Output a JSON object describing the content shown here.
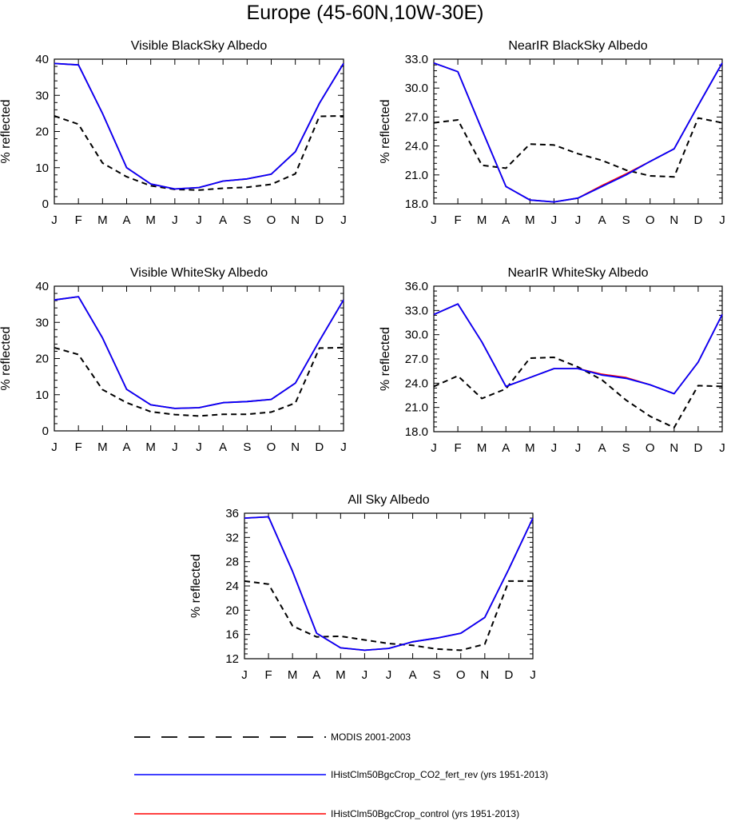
{
  "figure": {
    "title": "Europe (45-60N,10W-30E)"
  },
  "colors": {
    "modis": "#000000",
    "co2_fert_rev": "#0000ff",
    "control": "#ff0000"
  },
  "legend": [
    {
      "label": "MODIS 2001-2003",
      "color": "#000000",
      "dash": true
    },
    {
      "label": "IHistClm50BgcCrop_CO2_fert_rev (yrs 1951-2013)",
      "color": "#0000ff",
      "dash": false
    },
    {
      "label": "IHistClm50BgcCrop_control (yrs 1951-2013)",
      "color": "#ff0000",
      "dash": false
    }
  ],
  "chart_data": [
    {
      "type": "line",
      "title": "Visible BlackSky Albedo",
      "ylabel": "% reflected",
      "xlabel": "",
      "categories": [
        "J",
        "F",
        "M",
        "A",
        "M",
        "J",
        "J",
        "A",
        "S",
        "O",
        "N",
        "D",
        "J"
      ],
      "ylim": [
        0,
        40
      ],
      "yticks": [
        "0",
        "10",
        "20",
        "30",
        "40"
      ],
      "series": [
        {
          "name": "MODIS 2001-2003",
          "values": [
            24.3,
            22.0,
            11.3,
            7.5,
            5.0,
            4.0,
            3.8,
            4.3,
            4.6,
            5.4,
            8.3,
            24.2,
            24.3
          ]
        },
        {
          "name": "IHistClm50BgcCrop_control (yrs 1951-2013)",
          "values": [
            38.8,
            38.4,
            25.0,
            10.0,
            5.5,
            4.1,
            4.5,
            6.3,
            6.9,
            8.2,
            14.4,
            27.8,
            38.8
          ]
        },
        {
          "name": "IHistClm50BgcCrop_CO2_fert_rev (yrs 1951-2013)",
          "values": [
            38.8,
            38.4,
            25.0,
            10.0,
            5.5,
            4.1,
            4.5,
            6.3,
            6.9,
            8.2,
            14.4,
            27.8,
            38.8
          ]
        }
      ]
    },
    {
      "type": "line",
      "title": "NearIR BlackSky Albedo",
      "ylabel": "% reflected",
      "xlabel": "",
      "categories": [
        "J",
        "F",
        "M",
        "A",
        "M",
        "J",
        "J",
        "A",
        "S",
        "O",
        "N",
        "D",
        "J"
      ],
      "ylim": [
        18.0,
        33.0
      ],
      "yticks": [
        "18.0",
        "21.0",
        "24.0",
        "27.0",
        "30.0",
        "33.0"
      ],
      "series": [
        {
          "name": "MODIS 2001-2003",
          "values": [
            26.4,
            26.7,
            22.0,
            21.7,
            24.2,
            24.1,
            23.2,
            22.5,
            21.5,
            20.9,
            20.8,
            26.9,
            26.4
          ]
        },
        {
          "name": "IHistClm50BgcCrop_control (yrs 1951-2013)",
          "values": [
            32.6,
            31.7,
            25.7,
            19.8,
            18.4,
            18.2,
            18.6,
            19.9,
            21.1,
            22.4,
            23.7,
            28.2,
            32.6
          ]
        },
        {
          "name": "IHistClm50BgcCrop_CO2_fert_rev (yrs 1951-2013)",
          "values": [
            32.6,
            31.7,
            25.7,
            19.8,
            18.4,
            18.2,
            18.6,
            19.8,
            21.0,
            22.4,
            23.7,
            28.2,
            32.6
          ]
        }
      ]
    },
    {
      "type": "line",
      "title": "Visible WhiteSky Albedo",
      "ylabel": "% reflected",
      "xlabel": "",
      "categories": [
        "J",
        "F",
        "M",
        "A",
        "M",
        "J",
        "J",
        "A",
        "S",
        "O",
        "N",
        "D",
        "J"
      ],
      "ylim": [
        0,
        40
      ],
      "yticks": [
        "0",
        "10",
        "20",
        "30",
        "40"
      ],
      "series": [
        {
          "name": "MODIS 2001-2003",
          "values": [
            23.0,
            21.1,
            11.4,
            7.8,
            5.3,
            4.5,
            4.1,
            4.6,
            4.6,
            5.2,
            7.7,
            22.9,
            23.0
          ]
        },
        {
          "name": "IHistClm50BgcCrop_control (yrs 1951-2013)",
          "values": [
            36.2,
            37.1,
            25.7,
            11.5,
            7.2,
            6.2,
            6.4,
            7.8,
            8.1,
            8.7,
            13.2,
            24.9,
            36.2
          ]
        },
        {
          "name": "IHistClm50BgcCrop_CO2_fert_rev (yrs 1951-2013)",
          "values": [
            36.2,
            37.1,
            25.7,
            11.5,
            7.2,
            6.2,
            6.4,
            7.8,
            8.1,
            8.7,
            13.2,
            24.9,
            36.2
          ]
        }
      ]
    },
    {
      "type": "line",
      "title": "NearIR WhiteSky Albedo",
      "ylabel": "% reflected",
      "xlabel": "",
      "categories": [
        "J",
        "F",
        "M",
        "A",
        "M",
        "J",
        "J",
        "A",
        "S",
        "O",
        "N",
        "D",
        "J"
      ],
      "ylim": [
        18.0,
        36.0
      ],
      "yticks": [
        "18.0",
        "21.0",
        "24.0",
        "27.0",
        "30.0",
        "33.0",
        "36.0"
      ],
      "series": [
        {
          "name": "MODIS 2001-2003",
          "values": [
            23.6,
            24.9,
            22.1,
            23.3,
            27.1,
            27.2,
            26.0,
            24.4,
            21.9,
            19.9,
            18.5,
            23.7,
            23.6
          ]
        },
        {
          "name": "IHistClm50BgcCrop_control (yrs 1951-2013)",
          "values": [
            32.5,
            33.8,
            29.1,
            23.6,
            24.7,
            25.8,
            25.8,
            25.1,
            24.7,
            23.8,
            22.7,
            26.6,
            32.5
          ]
        },
        {
          "name": "IHistClm50BgcCrop_CO2_fert_rev (yrs 1951-2013)",
          "values": [
            32.5,
            33.8,
            29.1,
            23.6,
            24.7,
            25.8,
            25.8,
            25.0,
            24.6,
            23.8,
            22.7,
            26.6,
            32.5
          ]
        }
      ]
    },
    {
      "type": "line",
      "title": "All Sky Albedo",
      "ylabel": "% reflected",
      "xlabel": "",
      "categories": [
        "J",
        "F",
        "M",
        "A",
        "M",
        "J",
        "J",
        "A",
        "S",
        "O",
        "N",
        "D",
        "J"
      ],
      "ylim": [
        12,
        36
      ],
      "yticks": [
        "12",
        "16",
        "20",
        "24",
        "28",
        "32",
        "36"
      ],
      "series": [
        {
          "name": "MODIS 2001-2003",
          "values": [
            24.8,
            24.3,
            17.4,
            15.6,
            15.7,
            15.1,
            14.5,
            14.2,
            13.6,
            13.4,
            14.4,
            24.8,
            24.8
          ]
        },
        {
          "name": "IHistClm50BgcCrop_control (yrs 1951-2013)",
          "values": [
            35.2,
            35.4,
            26.4,
            16.2,
            13.8,
            13.4,
            13.7,
            14.8,
            15.4,
            16.2,
            18.8,
            26.8,
            35.2
          ]
        },
        {
          "name": "IHistClm50BgcCrop_CO2_fert_rev (yrs 1951-2013)",
          "values": [
            35.2,
            35.4,
            26.4,
            16.2,
            13.8,
            13.4,
            13.7,
            14.8,
            15.4,
            16.2,
            18.8,
            26.8,
            35.2
          ]
        }
      ]
    }
  ]
}
